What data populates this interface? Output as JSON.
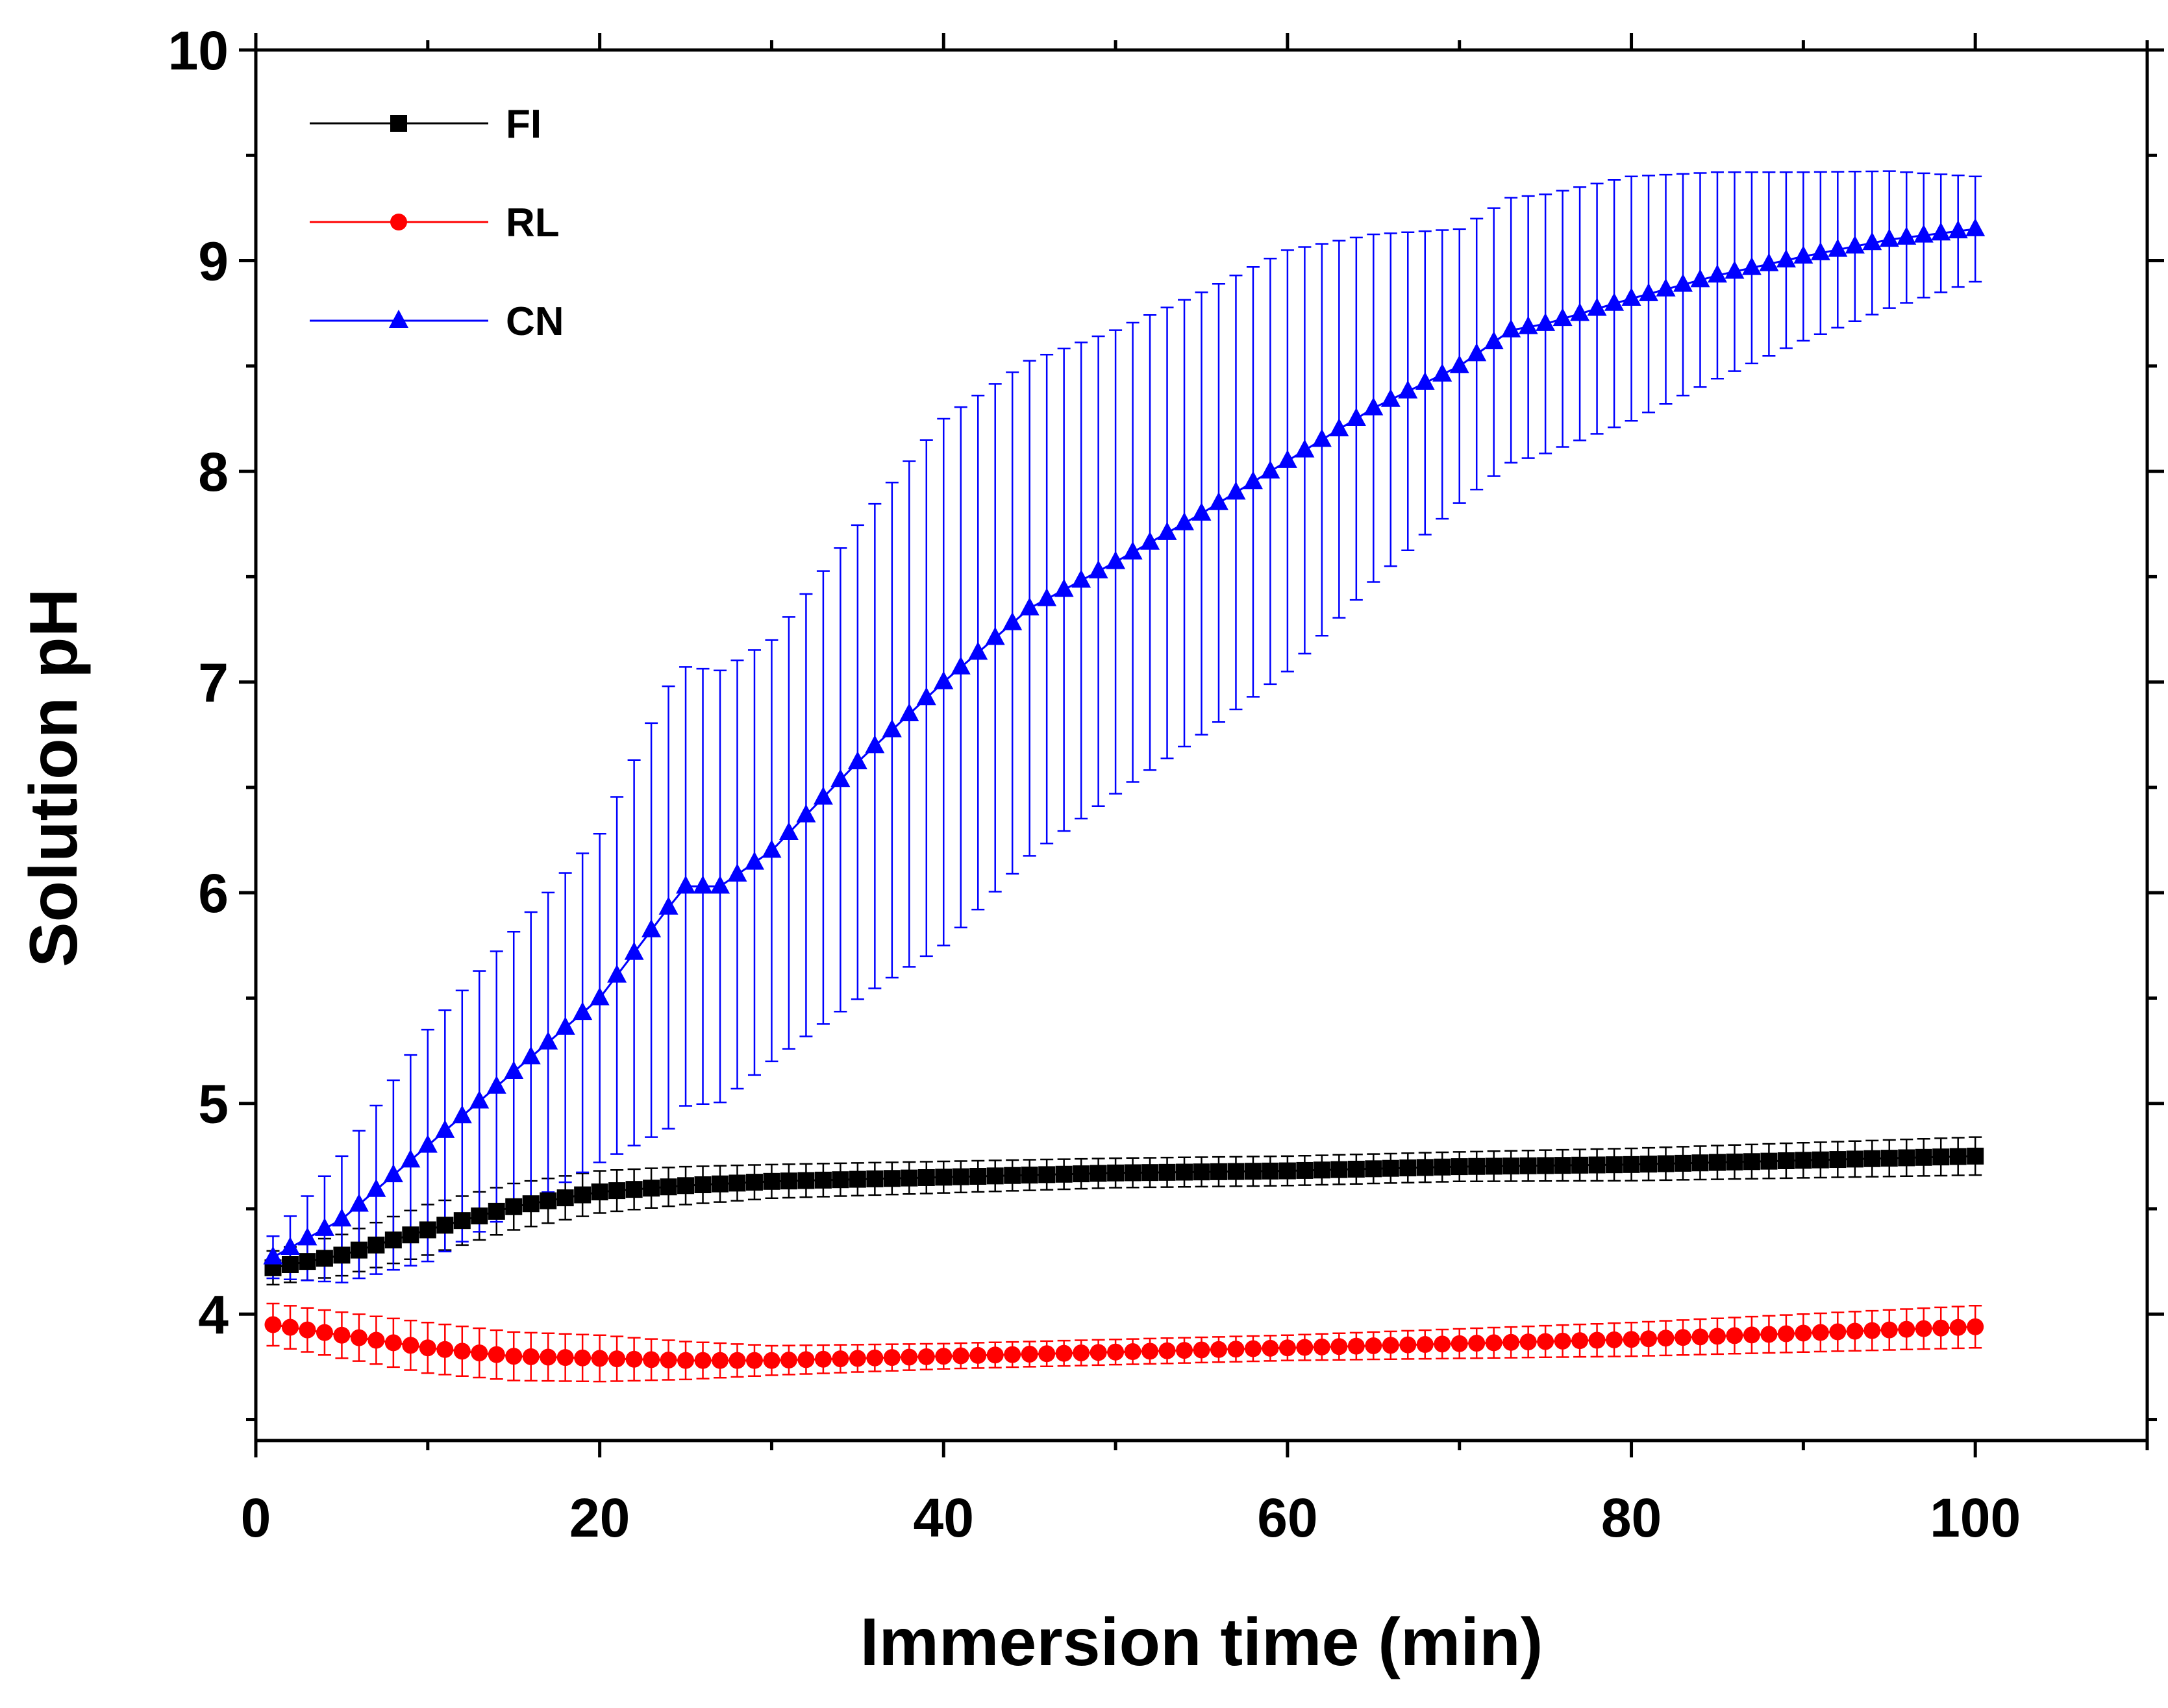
{
  "chart_data": {
    "type": "line",
    "title": "",
    "xlabel": "Immersion time (min)",
    "ylabel": "Solution pH",
    "xlim": [
      0,
      110
    ],
    "ylim": [
      3.4,
      10
    ],
    "xticks": [
      0,
      20,
      40,
      60,
      80,
      100
    ],
    "yticks": [
      4,
      5,
      6,
      7,
      8,
      9,
      10
    ],
    "x_minor_step": 10,
    "y_minor_step": 0.5,
    "grid": false,
    "legend_position": "top-left",
    "error_bars": true,
    "x": {
      "start": 1,
      "end": 100,
      "step": 1
    },
    "series": [
      {
        "name": "FI",
        "color": "#000000",
        "marker": "square",
        "points": [
          [
            1,
            4.22
          ],
          [
            5,
            4.28
          ],
          [
            10,
            4.4
          ],
          [
            15,
            4.51
          ],
          [
            20,
            4.58
          ],
          [
            25,
            4.61
          ],
          [
            30,
            4.63
          ],
          [
            40,
            4.65
          ],
          [
            50,
            4.67
          ],
          [
            60,
            4.68
          ],
          [
            70,
            4.7
          ],
          [
            80,
            4.71
          ],
          [
            90,
            4.73
          ],
          [
            100,
            4.75
          ]
        ],
        "error_points": [
          [
            1,
            0.08
          ],
          [
            10,
            0.12
          ],
          [
            20,
            0.1
          ],
          [
            30,
            0.08
          ],
          [
            50,
            0.07
          ],
          [
            70,
            0.07
          ],
          [
            100,
            0.09
          ]
        ]
      },
      {
        "name": "RL",
        "color": "#ff0000",
        "marker": "circle",
        "points": [
          [
            1,
            3.95
          ],
          [
            5,
            3.9
          ],
          [
            10,
            3.84
          ],
          [
            15,
            3.8
          ],
          [
            20,
            3.79
          ],
          [
            25,
            3.78
          ],
          [
            30,
            3.78
          ],
          [
            35,
            3.79
          ],
          [
            40,
            3.8
          ],
          [
            50,
            3.82
          ],
          [
            60,
            3.84
          ],
          [
            70,
            3.86
          ],
          [
            80,
            3.88
          ],
          [
            90,
            3.91
          ],
          [
            100,
            3.94
          ]
        ],
        "error_points": [
          [
            1,
            0.1
          ],
          [
            10,
            0.12
          ],
          [
            20,
            0.11
          ],
          [
            30,
            0.07
          ],
          [
            40,
            0.06
          ],
          [
            60,
            0.06
          ],
          [
            80,
            0.08
          ],
          [
            100,
            0.1
          ]
        ]
      },
      {
        "name": "CN",
        "color": "#0000ff",
        "marker": "triangle",
        "points": [
          [
            1,
            4.27
          ],
          [
            5,
            4.45
          ],
          [
            10,
            4.8
          ],
          [
            15,
            5.15
          ],
          [
            20,
            5.5
          ],
          [
            24,
            5.93
          ],
          [
            25,
            6.03
          ],
          [
            27,
            6.03
          ],
          [
            30,
            6.2
          ],
          [
            35,
            6.62
          ],
          [
            40,
            7.0
          ],
          [
            45,
            7.35
          ],
          [
            50,
            7.57
          ],
          [
            55,
            7.8
          ],
          [
            60,
            8.05
          ],
          [
            65,
            8.3
          ],
          [
            70,
            8.5
          ],
          [
            73,
            8.67
          ],
          [
            75,
            8.7
          ],
          [
            80,
            8.82
          ],
          [
            85,
            8.93
          ],
          [
            90,
            9.02
          ],
          [
            95,
            9.1
          ],
          [
            100,
            9.15
          ]
        ],
        "error_points": [
          [
            1,
            0.1
          ],
          [
            10,
            0.55
          ],
          [
            20,
            0.78
          ],
          [
            24,
            1.05
          ],
          [
            30,
            1.0
          ],
          [
            40,
            1.25
          ],
          [
            50,
            1.1
          ],
          [
            60,
            1.0
          ],
          [
            70,
            0.65
          ],
          [
            80,
            0.58
          ],
          [
            90,
            0.4
          ],
          [
            100,
            0.25
          ]
        ]
      }
    ]
  }
}
